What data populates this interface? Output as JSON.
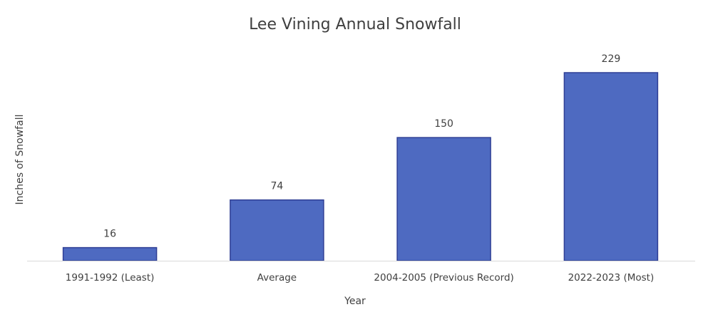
{
  "chart_data": {
    "type": "bar",
    "title": "Lee Vining Annual Snowfall",
    "xlabel": "Year",
    "ylabel": "Inches of Snowfall",
    "categories": [
      "1991-1992 (Least)",
      "Average",
      "2004-2005 (Previous Record)",
      "2022-2023 (Most)"
    ],
    "values": [
      16,
      74,
      150,
      229
    ],
    "ylim": [
      0,
      229
    ],
    "grid": false,
    "legend": "none",
    "data_labels": true,
    "colors": {
      "bar_fill": "#4e6ac1",
      "bar_stroke": "#2f3f95",
      "axis": "#d9d9d9",
      "text": "#404040"
    }
  }
}
